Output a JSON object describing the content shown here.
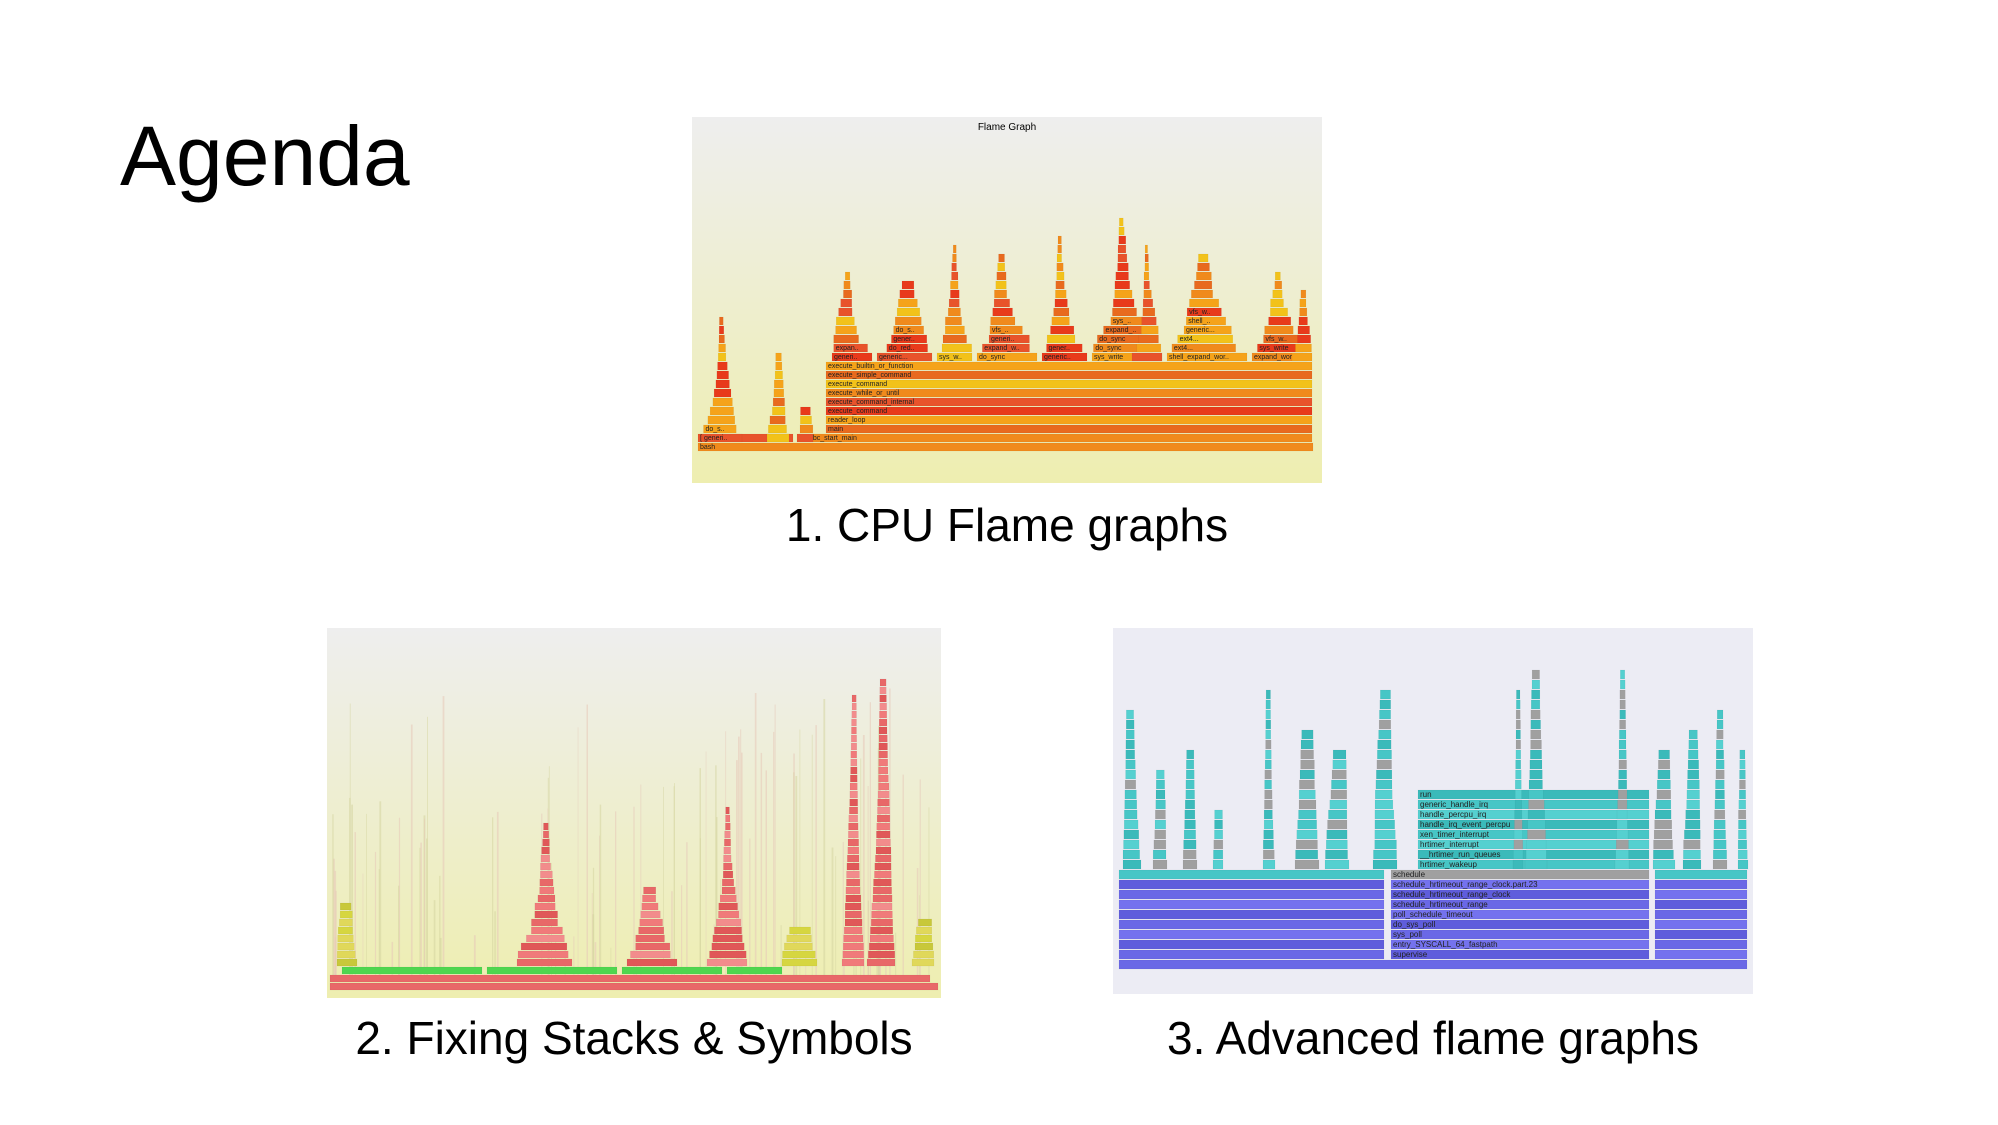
{
  "slide": {
    "title": "Agenda"
  },
  "items": [
    {
      "caption": "1. CPU Flame graphs",
      "inset_title": "Flame Graph"
    },
    {
      "caption": "2. Fixing Stacks & Symbols"
    },
    {
      "caption": "3. Advanced flame graphs"
    }
  ],
  "cpu_flame": {
    "frame_labels": [
      "bash",
      "[unknown]",
      "__libc_start_main",
      "main",
      "reader_loop",
      "execute_command",
      "execute_command_internal",
      "execute_while_or_until",
      "execute_command",
      "execute_simple_command",
      "execute_builtin_or_function",
      "do_redirections",
      "expand_words",
      "expand_word_list_internal",
      "shell_expand_word_list",
      "tracesys",
      "sys_write",
      "vfs_write",
      "do_sync",
      "ext4...",
      "generic..."
    ]
  },
  "advanced_flame": {
    "frame_labels": [
      "supervise",
      "entry_SYSCALL_64_fastpath",
      "sys_poll",
      "do_sys_poll",
      "poll_schedule_timeout",
      "schedule_hrtimeout_range",
      "schedule_hrtimeout_range_clock",
      "schedule_hrtimeout_range_clock.part.23",
      "schedule",
      "hrtimer_wakeup",
      "__hrtimer_run_queues",
      "hrtimer_interrupt",
      "xen_timer_interrupt",
      "handle_irq_event_percpu",
      "handle_percpu_irq",
      "generic_handle_irq",
      "run",
      "swapper/0"
    ]
  },
  "colors": {
    "flame_bg_top": "#eeeeee",
    "flame_bg_bottom": "#eeeeb0",
    "cpu_red": "#e8532b",
    "cpu_orange": "#f08a1c",
    "cpu_yellow": "#f2c21a",
    "java_red": "#e86868",
    "java_green": "#4fd64f",
    "adv_cyan": "#47c6c6",
    "adv_blue": "#6a68e6",
    "adv_gray": "#a0a0a0"
  }
}
